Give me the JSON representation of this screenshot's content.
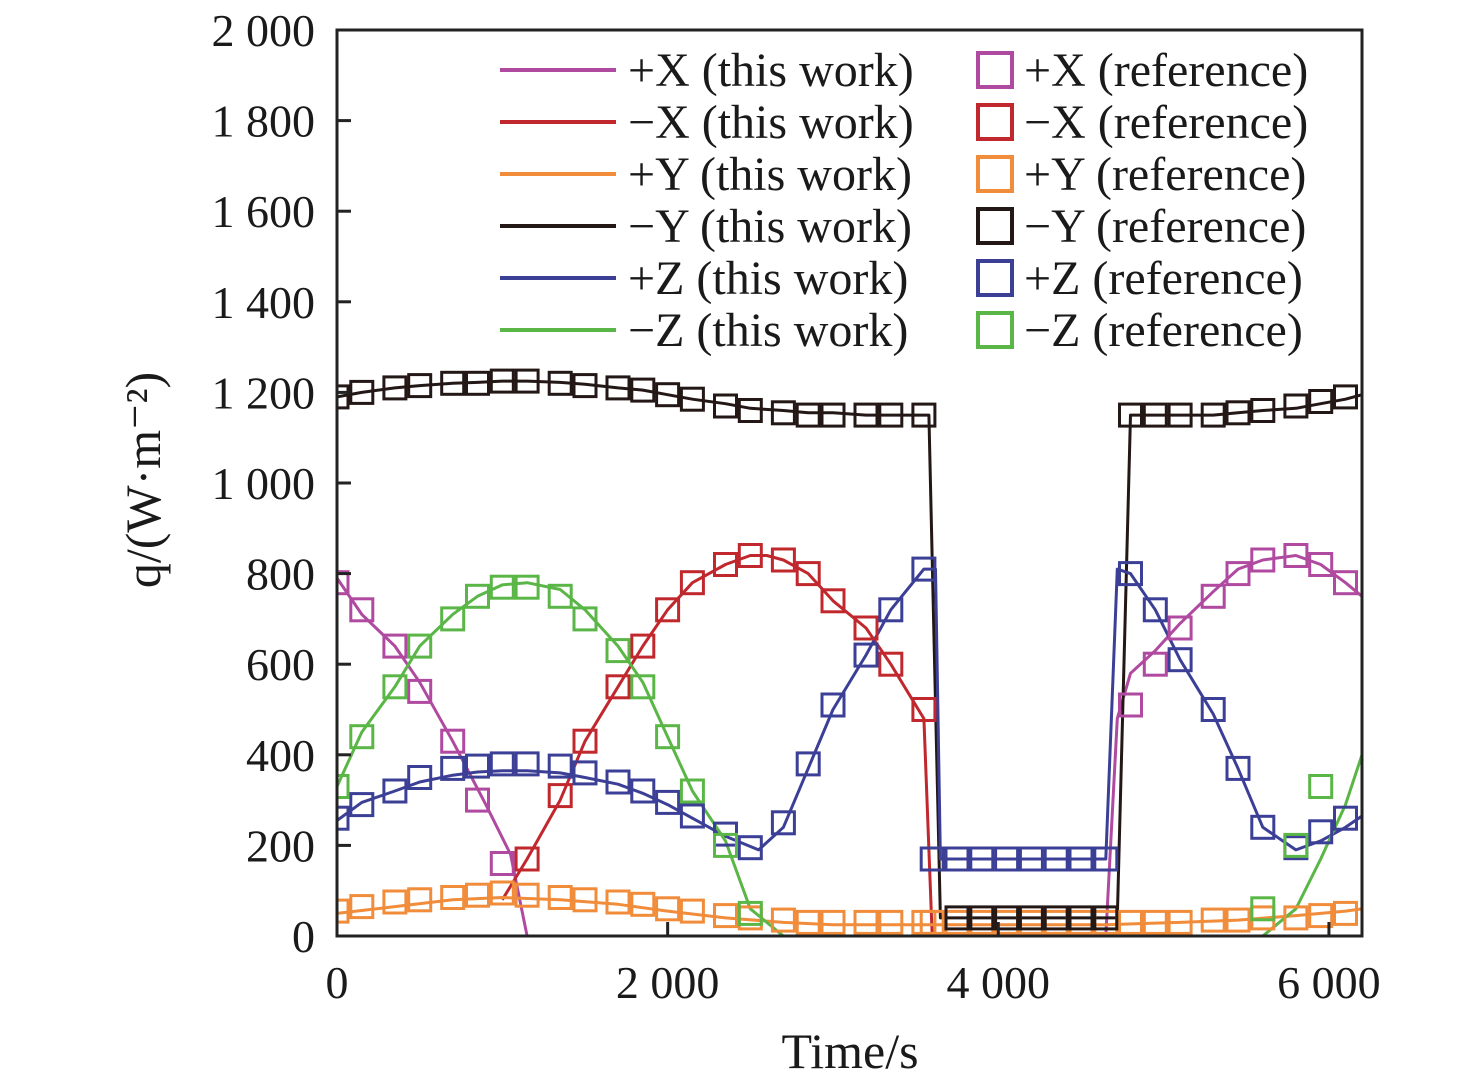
{
  "chart_data": {
    "type": "line",
    "xlabel": "Time/s",
    "ylabel": "q/(W·m⁻²)",
    "xlim": [
      0,
      6200
    ],
    "ylim": [
      0,
      2000
    ],
    "x_ticks": [
      0,
      2000,
      4000,
      6000
    ],
    "x_tick_labels": [
      "0",
      "2 000",
      "4 000",
      "6 000"
    ],
    "y_ticks": [
      0,
      200,
      400,
      600,
      800,
      1000,
      1200,
      1400,
      1600,
      1800,
      2000
    ],
    "y_tick_labels": [
      "0",
      "200",
      "400",
      "600",
      "800",
      "1 000",
      "1 200",
      "1 400",
      "1 600",
      "1 800",
      "2 000"
    ],
    "grid": false,
    "legend_position": "top-right",
    "reference_marker": "hollow-square",
    "ref_x": [
      0,
      150,
      350,
      500,
      700,
      850,
      1000,
      1150,
      1350,
      1500,
      1700,
      1850,
      2000,
      2150,
      2350,
      2500,
      2700,
      2850,
      3000,
      3200,
      3350,
      3550,
      3600,
      3750,
      3900,
      4050,
      4200,
      4350,
      4500,
      4650,
      4800,
      4950,
      5100,
      5300,
      5450,
      5600,
      5800,
      5950,
      6100
    ],
    "series": [
      {
        "name": "+X (this work)",
        "ref_name": "+X (reference)",
        "color": "#b04aa0",
        "x": [
          0,
          150,
          350,
          500,
          700,
          900,
          1050,
          1150,
          3500,
          3550,
          3620,
          4650,
          4720,
          4800,
          4950,
          5100,
          5300,
          5450,
          5600,
          5800,
          5950,
          6100,
          6200
        ],
        "y": [
          790,
          710,
          640,
          560,
          430,
          290,
          180,
          0,
          0,
          0,
          0,
          0,
          480,
          580,
          630,
          690,
          760,
          810,
          830,
          840,
          820,
          780,
          750
        ],
        "ref": [
          780,
          720,
          640,
          540,
          430,
          300,
          160,
          null,
          null,
          null,
          null,
          null,
          null,
          null,
          null,
          null,
          null,
          null,
          null,
          null,
          null,
          null,
          null,
          null,
          null,
          null,
          null,
          null,
          null,
          null,
          510,
          600,
          680,
          750,
          800,
          830,
          840,
          820,
          780
        ]
      },
      {
        "name": "−X (this work)",
        "ref_name": "−X (reference)",
        "color": "#c0282e",
        "x": [
          1000,
          1150,
          1350,
          1500,
          1700,
          1850,
          2000,
          2150,
          2350,
          2500,
          2600,
          2700,
          2850,
          3000,
          3200,
          3350,
          3550,
          3600
        ],
        "y": [
          80,
          170,
          300,
          430,
          550,
          640,
          720,
          780,
          820,
          840,
          840,
          830,
          800,
          740,
          680,
          600,
          480,
          0
        ],
        "ref": [
          null,
          null,
          null,
          null,
          null,
          null,
          null,
          170,
          310,
          430,
          550,
          640,
          720,
          780,
          820,
          840,
          830,
          800,
          740,
          680,
          600,
          500,
          null,
          null,
          null,
          null,
          null,
          null,
          null,
          null,
          null,
          null,
          null,
          null,
          null,
          null,
          null,
          null,
          null
        ]
      },
      {
        "name": "+Y (this work)",
        "ref_name": "+Y (reference)",
        "color": "#f08c3a",
        "x": [
          0,
          350,
          700,
          1000,
          1350,
          1700,
          2000,
          2350,
          2700,
          3000,
          3350,
          3600,
          4650,
          5100,
          5450,
          5800,
          6100,
          6200
        ],
        "y": [
          50,
          65,
          80,
          85,
          80,
          70,
          55,
          40,
          30,
          25,
          25,
          25,
          25,
          30,
          35,
          45,
          55,
          60
        ],
        "ref": [
          55,
          65,
          75,
          80,
          85,
          90,
          95,
          90,
          85,
          80,
          75,
          70,
          60,
          55,
          45,
          40,
          35,
          30,
          30,
          30,
          30,
          30,
          30,
          30,
          30,
          30,
          30,
          30,
          30,
          30,
          30,
          30,
          30,
          35,
          35,
          40,
          40,
          45,
          50
        ]
      },
      {
        "name": "−Y (this work)",
        "ref_name": "−Y (reference)",
        "color": "#231815",
        "x": [
          0,
          150,
          350,
          500,
          700,
          850,
          1000,
          1150,
          1350,
          1500,
          1700,
          1850,
          2000,
          2150,
          2350,
          2500,
          2700,
          2850,
          3000,
          3200,
          3350,
          3550,
          3580,
          3650,
          3900,
          4200,
          4500,
          4650,
          4720,
          4800,
          4950,
          5100,
          5300,
          5450,
          5600,
          5800,
          5950,
          6100,
          6200
        ],
        "y": [
          1190,
          1200,
          1210,
          1215,
          1220,
          1222,
          1225,
          1225,
          1222,
          1218,
          1210,
          1205,
          1195,
          1185,
          1175,
          1165,
          1160,
          1155,
          1155,
          1150,
          1150,
          1150,
          1150,
          40,
          40,
          40,
          40,
          40,
          40,
          1150,
          1150,
          1150,
          1150,
          1155,
          1160,
          1165,
          1175,
          1185,
          1195
        ],
        "ref": [
          1190,
          1200,
          1210,
          1215,
          1220,
          1220,
          1225,
          1225,
          1220,
          1215,
          1210,
          1205,
          1195,
          1185,
          1170,
          1160,
          1155,
          1150,
          1150,
          1150,
          1150,
          1150,
          null,
          40,
          40,
          40,
          40,
          40,
          40,
          40,
          1150,
          1150,
          1150,
          1150,
          1155,
          1160,
          1170,
          1180,
          1190
        ]
      },
      {
        "name": "+Z (this work)",
        "ref_name": "+Z (reference)",
        "color": "#3c3f96",
        "x": [
          0,
          150,
          350,
          500,
          700,
          850,
          1000,
          1150,
          1350,
          1500,
          1700,
          1850,
          2000,
          2150,
          2350,
          2550,
          2700,
          2850,
          3000,
          3200,
          3350,
          3550,
          3620,
          3650,
          4650,
          4720,
          4800,
          4950,
          5100,
          5300,
          5450,
          5600,
          5800,
          5950,
          6100,
          6200
        ],
        "y": [
          255,
          295,
          320,
          340,
          355,
          362,
          365,
          365,
          360,
          350,
          335,
          315,
          290,
          260,
          220,
          190,
          240,
          370,
          500,
          620,
          720,
          810,
          810,
          170,
          170,
          810,
          800,
          720,
          610,
          490,
          370,
          240,
          190,
          210,
          240,
          265
        ],
        "ref": [
          260,
          290,
          320,
          350,
          370,
          375,
          380,
          380,
          375,
          360,
          340,
          320,
          295,
          265,
          225,
          195,
          250,
          380,
          510,
          620,
          720,
          810,
          170,
          170,
          170,
          170,
          170,
          170,
          170,
          170,
          800,
          720,
          610,
          500,
          370,
          240,
          195,
          230,
          260
        ]
      },
      {
        "name": "−Z (this work)",
        "ref_name": "−Z (reference)",
        "color": "#5ab646",
        "x": [
          0,
          150,
          350,
          500,
          700,
          850,
          1000,
          1150,
          1350,
          1500,
          1700,
          1850,
          2000,
          2150,
          2350,
          2500,
          2700,
          3600,
          5600,
          5800,
          5950,
          6100,
          6200
        ],
        "y": [
          330,
          450,
          550,
          640,
          710,
          750,
          775,
          780,
          765,
          720,
          640,
          560,
          440,
          320,
          210,
          60,
          0,
          0,
          0,
          60,
          170,
          290,
          400
        ],
        "ref": [
          330,
          440,
          550,
          640,
          700,
          750,
          770,
          770,
          750,
          700,
          630,
          550,
          440,
          320,
          200,
          50,
          null,
          null,
          null,
          null,
          null,
          null,
          null,
          null,
          null,
          null,
          null,
          null,
          null,
          null,
          null,
          null,
          null,
          null,
          null,
          60,
          200,
          330,
          null
        ]
      }
    ]
  }
}
